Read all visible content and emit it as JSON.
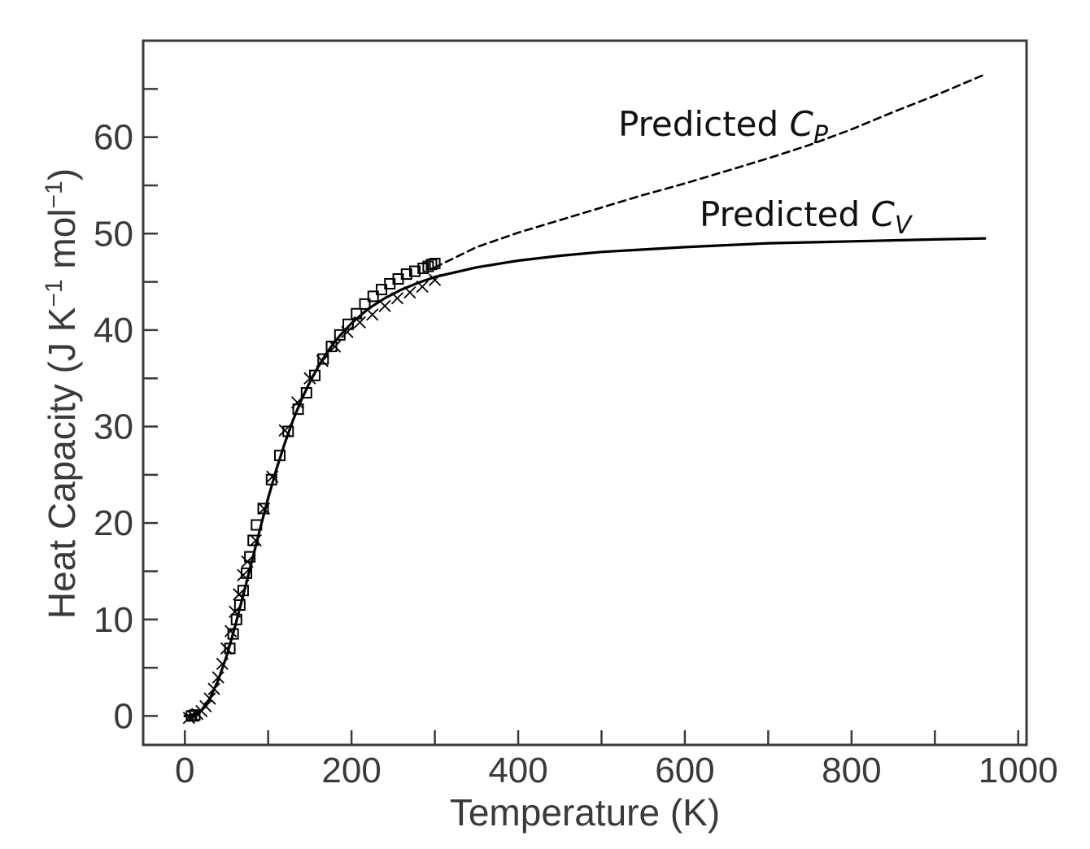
{
  "chart_data": {
    "type": "line",
    "xlabel": "Temperature (K)",
    "ylabel_parts": {
      "main": "Heat Capacity (J K",
      "exp1": "−1",
      "mid": " mol",
      "exp2": "−1",
      "end": ")"
    },
    "xlim": [
      -50,
      1010
    ],
    "ylim": [
      -3,
      70
    ],
    "x_ticks": [
      0,
      200,
      400,
      600,
      800,
      1000
    ],
    "x_minor_ticks": [
      100,
      300,
      500,
      700,
      900
    ],
    "y_ticks": [
      0,
      10,
      20,
      30,
      40,
      50,
      60
    ],
    "y_minor_ticks": [
      5,
      15,
      25,
      35,
      45,
      55,
      65
    ],
    "grid": false,
    "annotations": [
      {
        "text": "Predicted ",
        "symbol": "C",
        "subscript": "P",
        "target_series": "cp"
      },
      {
        "text": "Predicted ",
        "symbol": "C",
        "subscript": "V",
        "target_series": "cv"
      }
    ],
    "series": [
      {
        "id": "cv",
        "style": "solid",
        "x": [
          0,
          10,
          20,
          30,
          40,
          50,
          60,
          70,
          80,
          90,
          100,
          110,
          120,
          130,
          140,
          150,
          160,
          170,
          180,
          190,
          200,
          220,
          240,
          260,
          280,
          300,
          350,
          400,
          450,
          500,
          600,
          700,
          800,
          900,
          960
        ],
        "y": [
          0,
          0.1,
          0.6,
          1.8,
          3.7,
          6.2,
          9.2,
          12.5,
          15.9,
          19.3,
          22.6,
          25.6,
          28.3,
          30.7,
          32.8,
          34.6,
          36.2,
          37.6,
          38.8,
          39.8,
          40.7,
          42.2,
          43.3,
          44.2,
          44.9,
          45.5,
          46.5,
          47.2,
          47.7,
          48.1,
          48.6,
          49.0,
          49.2,
          49.4,
          49.5
        ]
      },
      {
        "id": "cp",
        "style": "dashed",
        "x": [
          300,
          350,
          400,
          450,
          500,
          550,
          600,
          650,
          700,
          750,
          800,
          850,
          900,
          960
        ],
        "y": [
          46.5,
          48.6,
          50.1,
          51.4,
          52.7,
          54.0,
          55.2,
          56.5,
          57.8,
          59.2,
          60.8,
          62.6,
          64.3,
          66.5
        ]
      },
      {
        "id": "exp_squares",
        "style": "markers",
        "marker": "square",
        "x": [
          8,
          12,
          54,
          58,
          62,
          66,
          70,
          74,
          78,
          82,
          86,
          94,
          104,
          114,
          124,
          136,
          146,
          156,
          166,
          176,
          186,
          196,
          206,
          216,
          226,
          236,
          246,
          256,
          266,
          276,
          286,
          292,
          296,
          300
        ],
        "y": [
          0.0,
          0.1,
          7.0,
          8.5,
          10.0,
          11.5,
          13.0,
          14.8,
          16.5,
          18.2,
          19.8,
          21.5,
          24.5,
          27.0,
          29.5,
          31.8,
          33.5,
          35.3,
          37.0,
          38.3,
          39.5,
          40.6,
          41.7,
          42.7,
          43.5,
          44.2,
          44.8,
          45.3,
          45.8,
          46.1,
          46.4,
          46.6,
          46.8,
          46.9
        ]
      },
      {
        "id": "exp_crosses",
        "style": "markers",
        "marker": "x",
        "x": [
          5,
          10,
          15,
          20,
          25,
          30,
          35,
          40,
          45,
          50,
          55,
          60,
          65,
          70,
          75,
          85,
          95,
          105,
          120,
          135,
          150,
          165,
          180,
          195,
          210,
          225,
          240,
          255,
          270,
          285,
          300
        ],
        "y": [
          -0.2,
          0.0,
          0.2,
          0.5,
          1.0,
          1.8,
          2.8,
          4.0,
          5.4,
          7.0,
          8.8,
          10.8,
          12.6,
          14.6,
          16.0,
          18.2,
          21.5,
          24.8,
          29.6,
          32.5,
          35.0,
          36.8,
          38.3,
          39.8,
          40.8,
          41.6,
          42.5,
          43.3,
          43.9,
          44.5,
          45.2
        ]
      }
    ]
  }
}
